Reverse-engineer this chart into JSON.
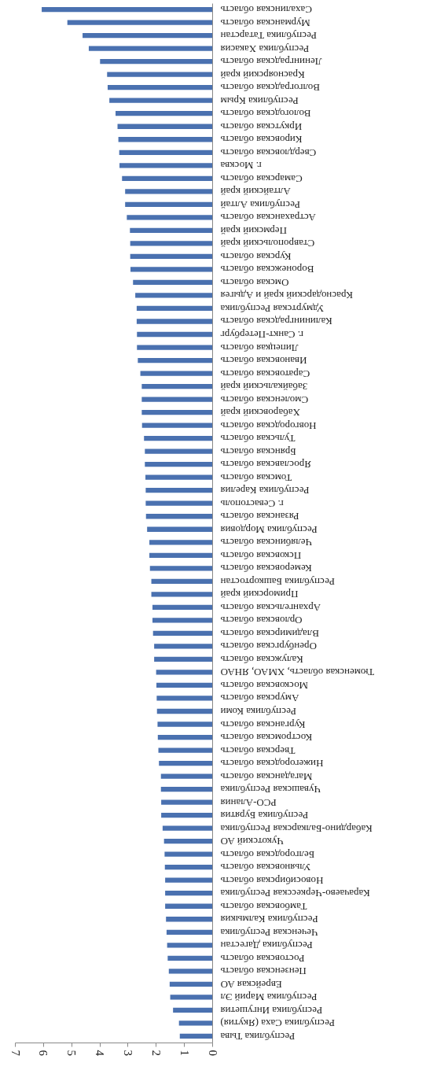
{
  "chart_data": {
    "type": "bar",
    "orientation": "horizontal",
    "categories": [
      "Сахалинская область",
      "Мурманская область",
      "Республика Татарстан",
      "Республика Хакасия",
      "Ленинградская область",
      "Красноярский край",
      "Волгоградская область",
      "Республика Крым",
      "Вологодская область",
      "Иркутская область",
      "Кировская область",
      "Свердловская область",
      "г. Москва",
      "Самарская область",
      "Алтайский край",
      "Республика Алтай",
      "Астраханская область",
      "Пермский край",
      "Ставропольский край",
      "Курская область",
      "Воронежская область",
      "Омская область",
      "Краснодарский край и Адыгея",
      "Удмуртская Республика",
      "Калининградская область",
      "г. Санкт-Петербург",
      "Липецкая область",
      "Ивановская область",
      "Саратовская область",
      "Забайкальский край",
      "Смоленская область",
      "Хабаровский край",
      "Новгородская область",
      "Тульская область",
      "Брянская область",
      "Ярославская область",
      "Томская область",
      "Республика Карелия",
      "г. Севастополь",
      "Рязанская область",
      "Республика Мордовия",
      "Челябинская область",
      "Псковская область",
      "Кемеровская область",
      "Республика Башкортостан",
      "Приморский край",
      "Архангельская область",
      "Орловская область",
      "Владимирская область",
      "Оренбургская область",
      "Калужская область",
      "Тюменская область, ХМАО, ЯНАО",
      "Московская область",
      "Амурская область",
      "Республика Коми",
      "Курганская область",
      "Костромская область",
      "Тверская область",
      "Нижегородская область",
      "Магаданская область",
      "Чувашская Республика",
      "РСО-Алания",
      "Республика Бурятия",
      "Кабардино-Балкарская Республика",
      "Чукотский АО",
      "Белгородская область",
      "Ульяновская область",
      "Новосибирская область",
      "Карачаево-Черкесская Республика",
      "Тамбовская область",
      "Республика Калмыкия",
      "Чеченская Республика",
      "Республика Дагестан",
      "Ростовская область",
      "Пензенская область",
      "Еврейская АО",
      "Республика Марий Эл",
      "Республика Ингушетия",
      "Республика Саха (Якутия)",
      "Республика Тыва"
    ],
    "values": [
      6.05,
      5.14,
      4.6,
      4.38,
      3.98,
      3.73,
      3.71,
      3.65,
      3.43,
      3.36,
      3.33,
      3.3,
      3.29,
      3.2,
      3.09,
      3.09,
      3.03,
      2.92,
      2.91,
      2.91,
      2.9,
      2.81,
      2.73,
      2.68,
      2.68,
      2.67,
      2.67,
      2.64,
      2.55,
      2.5,
      2.5,
      2.5,
      2.49,
      2.42,
      2.39,
      2.39,
      2.37,
      2.36,
      2.36,
      2.35,
      2.31,
      2.23,
      2.23,
      2.21,
      2.16,
      2.16,
      2.12,
      2.12,
      2.1,
      2.06,
      2.06,
      1.99,
      1.98,
      1.97,
      1.96,
      1.94,
      1.93,
      1.91,
      1.89,
      1.82,
      1.82,
      1.81,
      1.81,
      1.76,
      1.71,
      1.69,
      1.68,
      1.67,
      1.67,
      1.67,
      1.64,
      1.62,
      1.6,
      1.58,
      1.54,
      1.51,
      1.49,
      1.39,
      1.18,
      1.15
    ],
    "color": "#4a71b0",
    "xlim": [
      7,
      0
    ],
    "xticks": [
      0,
      1,
      2,
      3,
      4,
      5,
      6,
      7
    ],
    "grid": false
  }
}
